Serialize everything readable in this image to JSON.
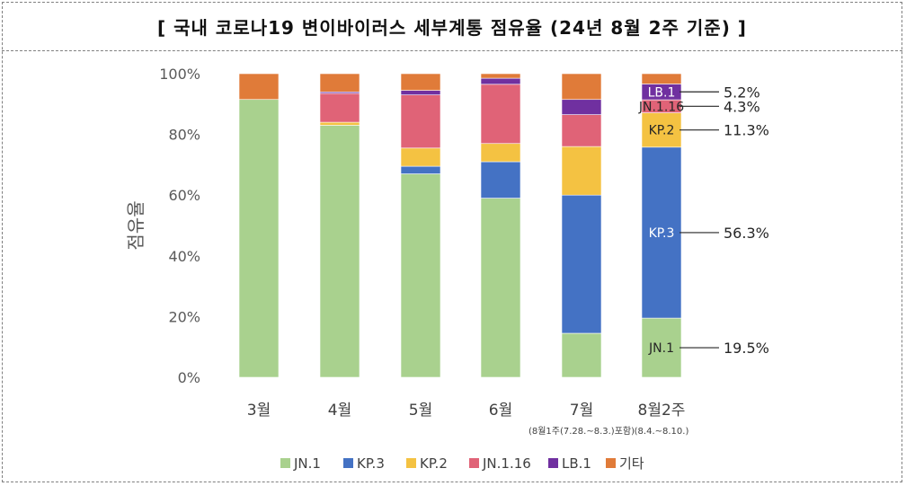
{
  "header": {
    "title": "[ 국내 코로나19 변이바이러스 세부계통 점유율 (24년 8월 2주 기준) ]"
  },
  "chart_data": {
    "type": "bar",
    "stacked": true,
    "ylabel": "점유율",
    "ylim": [
      0,
      100
    ],
    "yticks": [
      "0%",
      "20%",
      "40%",
      "60%",
      "80%",
      "100%"
    ],
    "categories": [
      "3월",
      "4월",
      "5월",
      "6월",
      "7월",
      "8월2주"
    ],
    "category_sublabels": [
      "",
      "",
      "",
      "",
      "(8월1주(7.28.~8.3.)포함)",
      "(8.4.~8.10.)"
    ],
    "series": [
      {
        "name": "JN.1",
        "color": "#a9d18e",
        "values": [
          91.5,
          83,
          67,
          59,
          14.5,
          19.5
        ]
      },
      {
        "name": "KP.3",
        "color": "#4472c4",
        "values": [
          0,
          0,
          2.5,
          12,
          45.5,
          56.3
        ]
      },
      {
        "name": "KP.2",
        "color": "#f4c242",
        "values": [
          0,
          1,
          6,
          6,
          16,
          11.3
        ]
      },
      {
        "name": "JN.1.16",
        "color": "#e06377",
        "values": [
          0,
          9.5,
          17.5,
          19.5,
          10.5,
          4.3
        ]
      },
      {
        "name": "LB.1",
        "color": "#7030a0",
        "values": [
          0,
          0.5,
          1.5,
          2,
          5,
          5.2
        ]
      },
      {
        "name": "기타",
        "color": "#e07b39",
        "values": [
          8.5,
          6,
          5.5,
          1.5,
          8.5,
          3.4
        ]
      }
    ],
    "annotations": [
      {
        "series": "LB.1",
        "label": "LB.1",
        "value": "5.2%"
      },
      {
        "series": "JN.1.16",
        "label": "JN.1.16",
        "value": "4.3%"
      },
      {
        "series": "KP.2",
        "label": "KP.2",
        "value": "11.3%"
      },
      {
        "series": "KP.3",
        "label": "KP.3",
        "value": "56.3%"
      },
      {
        "series": "JN.1",
        "label": "JN.1",
        "value": "19.5%"
      }
    ],
    "legend_position": "bottom",
    "grid": false
  }
}
